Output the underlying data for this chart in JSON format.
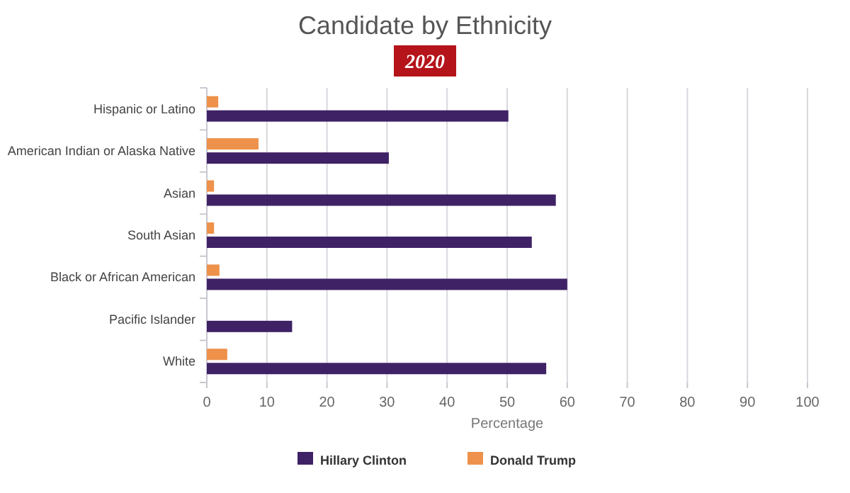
{
  "chart_data": {
    "type": "bar",
    "orientation": "horizontal",
    "title": "Candidate by Ethnicity",
    "subtitle": "2020",
    "xlabel": "Percentage",
    "categories": [
      "Hispanic or Latino",
      "American Indian or Alaska Native",
      "Asian",
      "South Asian",
      "Black or African American",
      "Pacific Islander",
      "White"
    ],
    "series": [
      {
        "name": "Hillary Clinton",
        "color": "#3f2266",
        "values": [
          50.2,
          30.3,
          58.1,
          54.1,
          60,
          14.2,
          56.5
        ]
      },
      {
        "name": "Donald Trump",
        "color": "#ee914a",
        "values": [
          1.9,
          8.6,
          1.2,
          1.2,
          2.1,
          0,
          3.4
        ]
      }
    ],
    "xlim": [
      0,
      100
    ],
    "xticks": [
      0,
      10,
      20,
      30,
      40,
      50,
      60,
      70,
      80,
      90,
      100
    ],
    "grid": "x",
    "legend": "bottom"
  }
}
